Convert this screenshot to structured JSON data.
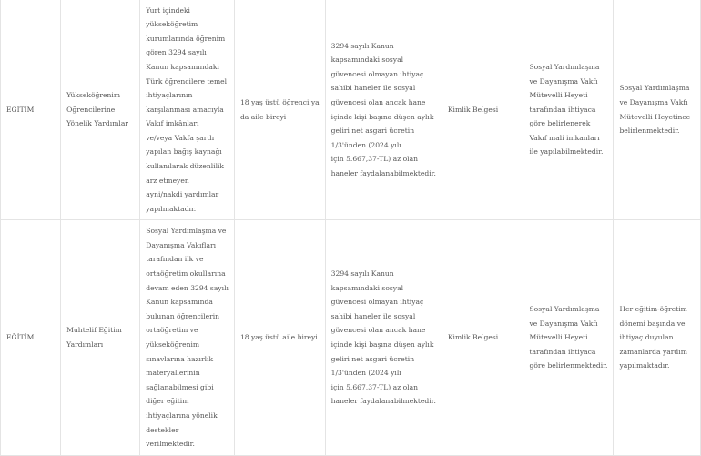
{
  "table": {
    "rows": [
      {
        "cells": [
          [
            "EĞİTİM"
          ],
          [
            "Yükseköğrenim",
            "Öğrencilerine",
            "Yönelik Yardımlar"
          ],
          [
            "Yurt içindeki",
            "yükseköğretim",
            "kurumlarında öğrenim",
            "gören 3294 sayılı",
            "Kanun kapsamındaki",
            "Türk öğrencilere temel",
            "ihtiyaçlarının",
            "karşılanması amacıyla",
            "Vakıf imkânları",
            "ve/veya Vakfa şartlı",
            "yapılan bağış kaynağı",
            "kullanılarak düzenlilik",
            "arz etmeyen",
            "ayni/nakdi yardımlar",
            "yapılmaktadır."
          ],
          [
            "18 yaş üstü öğrenci ya",
            "da aile bireyi"
          ],
          [
            "3294 sayılı Kanun",
            "kapsamındaki sosyal",
            "güvencesi olmayan ihtiyaç",
            "sahibi haneler ile sosyal",
            "güvencesi olan ancak hane",
            "içinde kişi başına düşen aylık",
            "geliri net asgari ücretin",
            "1/3'ünden (2024 yılı",
            "için 5.667,37-TL)  az olan",
            "haneler faydalanabilmektedir."
          ],
          [
            "Kimlik Belgesi"
          ],
          [
            "Sosyal Yardımlaşma",
            "ve Dayanışma Vakfı",
            "Mütevelli Heyeti",
            "tarafından ihtiyaca",
            "göre belirlenerek",
            "Vakıf mali imkanları",
            "ile yapılabilmektedir."
          ],
          [
            "Sosyal Yardımlaşma",
            "ve Dayanışma Vakfı",
            "Mütevelli Heyetince",
            "belirlenmektedir."
          ]
        ]
      },
      {
        "cells": [
          [
            "EĞİTİM"
          ],
          [
            "Muhtelif Eğitim",
            "Yardımları"
          ],
          [
            "Sosyal Yardımlaşma ve",
            "Dayanışma Vakıfları",
            "tarafından ilk ve",
            "ortaöğretim okullarına",
            "devam eden 3294 sayılı",
            "Kanun kapsamında",
            "bulunan öğrencilerin",
            "ortaöğretim ve",
            "yükseköğrenim",
            "sınavlarına hazırlık",
            "materyallerinin",
            "sağlanabilmesi gibi",
            "diğer eğitim",
            "ihtiyaçlarına yönelik",
            "destekler",
            "verilmektedir."
          ],
          [
            "18 yaş üstü aile bireyi"
          ],
          [
            "3294 sayılı Kanun",
            "kapsamındaki sosyal",
            "güvencesi olmayan ihtiyaç",
            "sahibi haneler ile sosyal",
            "güvencesi olan ancak hane",
            "içinde kişi başına düşen aylık",
            "geliri net asgari ücretin",
            "1/3'ünden (2024 yılı",
            "için 5.667,37-TL) az olan",
            "haneler faydalanabilmektedir."
          ],
          [
            "Kimlik Belgesi"
          ],
          [
            "Sosyal Yardımlaşma",
            "ve Dayanışma Vakfı",
            "Mütevelli Heyeti",
            "tarafından ihtiyaca",
            "göre belirlenmektedir."
          ],
          [
            "Her eğitim-öğretim",
            "dönemi başında ve",
            "ihtiyaç duyulan",
            "zamanlarda yardım",
            "yapılmaktadır."
          ]
        ]
      }
    ]
  }
}
